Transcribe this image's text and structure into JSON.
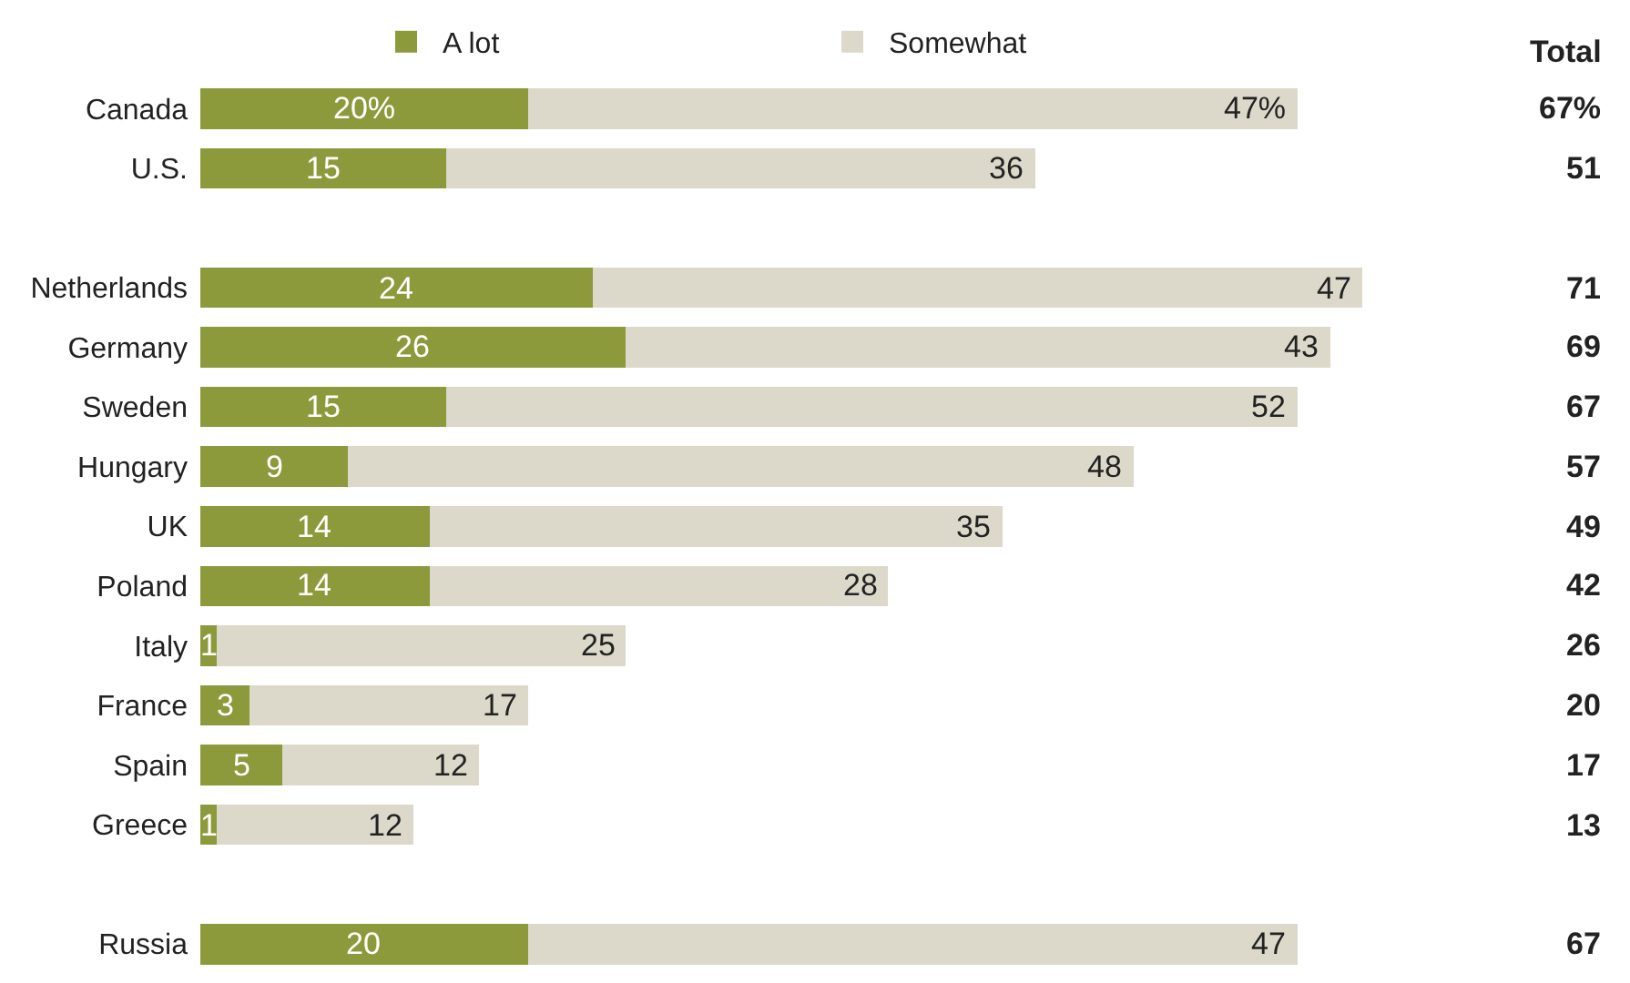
{
  "chart_data": {
    "type": "bar",
    "orientation": "horizontal",
    "stacked": true,
    "legend": "top",
    "categories": [
      "Canada",
      "U.S.",
      null,
      "Netherlands",
      "Germany",
      "Sweden",
      "Hungary",
      "UK",
      "Poland",
      "Italy",
      "France",
      "Spain",
      "Greece",
      null,
      "Russia"
    ],
    "series": [
      {
        "name": "A lot",
        "color": "#8c9a3c",
        "values": [
          20,
          15,
          null,
          24,
          26,
          15,
          9,
          14,
          14,
          1,
          3,
          5,
          1,
          null,
          20
        ],
        "value_labels": [
          "20%",
          "15",
          null,
          "24",
          "26",
          "15",
          "9",
          "14",
          "14",
          "1",
          "3",
          "5",
          "1",
          null,
          "20"
        ]
      },
      {
        "name": "Somewhat",
        "color": "#dcd8ca",
        "values": [
          47,
          36,
          null,
          47,
          43,
          52,
          48,
          35,
          28,
          25,
          17,
          12,
          12,
          null,
          47
        ],
        "value_labels": [
          "47%",
          "36",
          null,
          "47",
          "43",
          "52",
          "48",
          "35",
          "28",
          "25",
          "17",
          "12",
          "12",
          null,
          "47"
        ]
      }
    ],
    "annotations": [
      "Total",
      "67%",
      "51",
      "71",
      "69",
      "67",
      "57",
      "49",
      "42",
      "26",
      "20",
      "17",
      "13",
      "67"
    ]
  }
}
